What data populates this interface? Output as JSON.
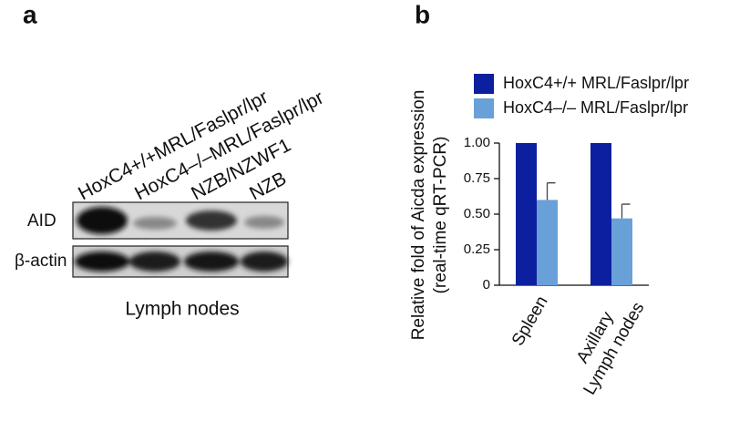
{
  "panel_a": {
    "label": "a",
    "lanes": [
      "HoxC4+/+MRL/Faslpr/lpr",
      "HoxC4–/–MRL/Faslpr/lpr",
      "NZB/NZWF1",
      "NZB"
    ],
    "rows": [
      "AID",
      "β-actin"
    ],
    "caption": "Lymph nodes"
  },
  "chart_data": {
    "type": "bar",
    "panel_label": "b",
    "y_label": [
      "Relative fold of Aicda expression",
      "(real-time qRT-PCR)"
    ],
    "categories": [
      "Spleen",
      "Axillary Lymph nodes"
    ],
    "series": [
      {
        "name": "HoxC4+/+ MRL/Faslpr/lpr",
        "color": "#0c1f9e",
        "values": [
          1.0,
          1.0
        ]
      },
      {
        "name": "HoxC4–/– MRL/Faslpr/lpr",
        "color": "#6aa0d8",
        "values": [
          0.6,
          0.47
        ],
        "errors": [
          0.12,
          0.1
        ]
      }
    ],
    "ylim": [
      0,
      1
    ],
    "yticks": [
      0,
      {
        "value": 0.25,
        "label": "0.25"
      },
      {
        "value": 0.5,
        "label": "0.50"
      },
      {
        "value": 0.75,
        "label": "0.75"
      },
      {
        "value": 1,
        "label": "1.00"
      }
    ],
    "legend": "top"
  }
}
